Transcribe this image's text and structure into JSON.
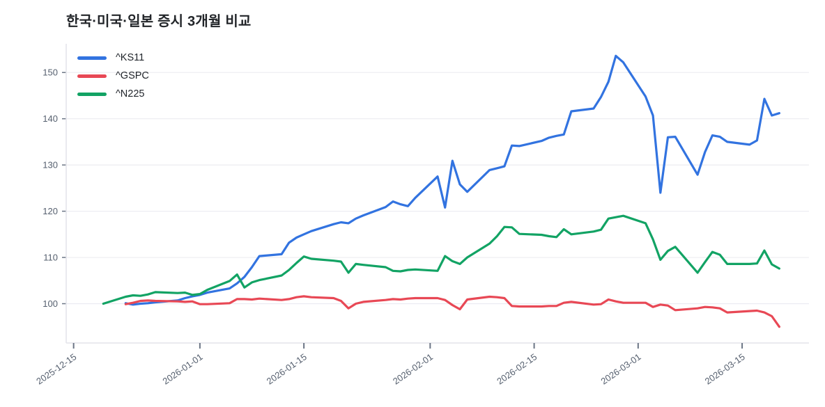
{
  "title": "한국·미국·일본 증시 3개월 비교",
  "colors": {
    "background": "#ffffff",
    "grid": "#ececf1",
    "axis_border": "#e3e4ea",
    "tick_mark": "#6b7585",
    "tick_text": "#56606f",
    "title_text": "#222529"
  },
  "chart_data": {
    "type": "line",
    "title": "한국·미국·일본 증시 3개월 비교",
    "xlabel": "",
    "ylabel": "",
    "grid": true,
    "legend_position": "top-left",
    "x_ticks": [
      "2025-12-15",
      "2026-01-01",
      "2026-01-15",
      "2026-02-01",
      "2026-02-15",
      "2026-03-01",
      "2026-03-15"
    ],
    "y_ticks": [
      100,
      110,
      120,
      130,
      140,
      150
    ],
    "xlim": [
      "2025-12-14",
      "2026-03-24"
    ],
    "ylim": [
      91.5,
      156.2
    ],
    "x": [
      "2025-12-19",
      "2025-12-22",
      "2025-12-23",
      "2025-12-24",
      "2025-12-25",
      "2025-12-26",
      "2025-12-29",
      "2025-12-30",
      "2025-12-31",
      "2026-01-01",
      "2026-01-02",
      "2026-01-05",
      "2026-01-06",
      "2026-01-07",
      "2026-01-08",
      "2026-01-09",
      "2026-01-12",
      "2026-01-13",
      "2026-01-14",
      "2026-01-15",
      "2026-01-16",
      "2026-01-19",
      "2026-01-20",
      "2026-01-21",
      "2026-01-22",
      "2026-01-23",
      "2026-01-26",
      "2026-01-27",
      "2026-01-28",
      "2026-01-29",
      "2026-01-30",
      "2026-02-02",
      "2026-02-03",
      "2026-02-04",
      "2026-02-05",
      "2026-02-06",
      "2026-02-09",
      "2026-02-10",
      "2026-02-11",
      "2026-02-12",
      "2026-02-13",
      "2026-02-16",
      "2026-02-17",
      "2026-02-18",
      "2026-02-19",
      "2026-02-20",
      "2026-02-23",
      "2026-02-24",
      "2026-02-25",
      "2026-02-26",
      "2026-02-27",
      "2026-03-02",
      "2026-03-03",
      "2026-03-04",
      "2026-03-05",
      "2026-03-06",
      "2026-03-09",
      "2026-03-10",
      "2026-03-11",
      "2026-03-12",
      "2026-03-13",
      "2026-03-16",
      "2026-03-17",
      "2026-03-18",
      "2026-03-19",
      "2026-03-20"
    ],
    "series": [
      {
        "name": "^KS11",
        "color": "#3273e0",
        "values": [
          null,
          100.1,
          99.8,
          100.0,
          100.1,
          100.3,
          100.7,
          101.2,
          101.6,
          101.9,
          102.4,
          103.3,
          104.4,
          105.8,
          107.9,
          110.3,
          110.7,
          113.2,
          114.3,
          115.0,
          115.7,
          117.2,
          117.6,
          117.4,
          118.4,
          119.1,
          120.9,
          122.1,
          121.5,
          121.1,
          122.9,
          127.5,
          120.8,
          130.9,
          125.8,
          124.2,
          128.9,
          129.3,
          129.7,
          134.2,
          134.1,
          135.2,
          135.9,
          136.3,
          136.6,
          141.6,
          142.2,
          144.7,
          148.0,
          153.6,
          152.2,
          144.8,
          140.7,
          124.0,
          136.0,
          136.1,
          127.9,
          132.8,
          136.4,
          136.1,
          135.0,
          134.4,
          135.3,
          144.3,
          140.7,
          141.2
        ]
      },
      {
        "name": "^GSPC",
        "color": "#e84855",
        "values": [
          null,
          99.9,
          100.2,
          100.6,
          100.7,
          100.6,
          100.5,
          100.4,
          100.5,
          99.9,
          99.9,
          100.1,
          101.0,
          101.0,
          100.9,
          101.1,
          100.8,
          101.0,
          101.4,
          101.6,
          101.4,
          101.2,
          100.6,
          99.0,
          100.0,
          100.4,
          100.8,
          101.0,
          100.9,
          101.1,
          101.2,
          101.2,
          100.8,
          99.7,
          98.8,
          100.9,
          101.5,
          101.4,
          101.2,
          99.5,
          99.4,
          99.4,
          99.5,
          99.5,
          100.2,
          100.4,
          99.8,
          99.9,
          100.9,
          100.5,
          100.2,
          100.2,
          99.3,
          99.8,
          99.6,
          98.6,
          99.0,
          99.3,
          99.2,
          99.0,
          98.1,
          98.4,
          98.5,
          98.1,
          97.3,
          95.0
        ]
      },
      {
        "name": "^N225",
        "color": "#12a364",
        "values": [
          100.0,
          101.5,
          101.8,
          101.7,
          102.0,
          102.5,
          102.3,
          102.4,
          101.9,
          102.1,
          103.0,
          104.9,
          106.3,
          103.5,
          104.6,
          105.1,
          106.1,
          107.3,
          108.8,
          110.2,
          109.7,
          109.3,
          109.1,
          106.7,
          108.6,
          108.4,
          107.9,
          107.1,
          107.0,
          107.3,
          107.4,
          107.1,
          110.3,
          109.2,
          108.6,
          110.0,
          113.0,
          114.6,
          116.6,
          116.5,
          115.1,
          114.9,
          114.6,
          114.4,
          116.1,
          115.0,
          115.6,
          116.0,
          118.4,
          118.7,
          119.0,
          117.4,
          113.9,
          109.5,
          111.4,
          112.3,
          106.7,
          109.0,
          111.2,
          110.6,
          108.6,
          108.6,
          108.7,
          111.5,
          108.5,
          107.6
        ]
      }
    ]
  }
}
